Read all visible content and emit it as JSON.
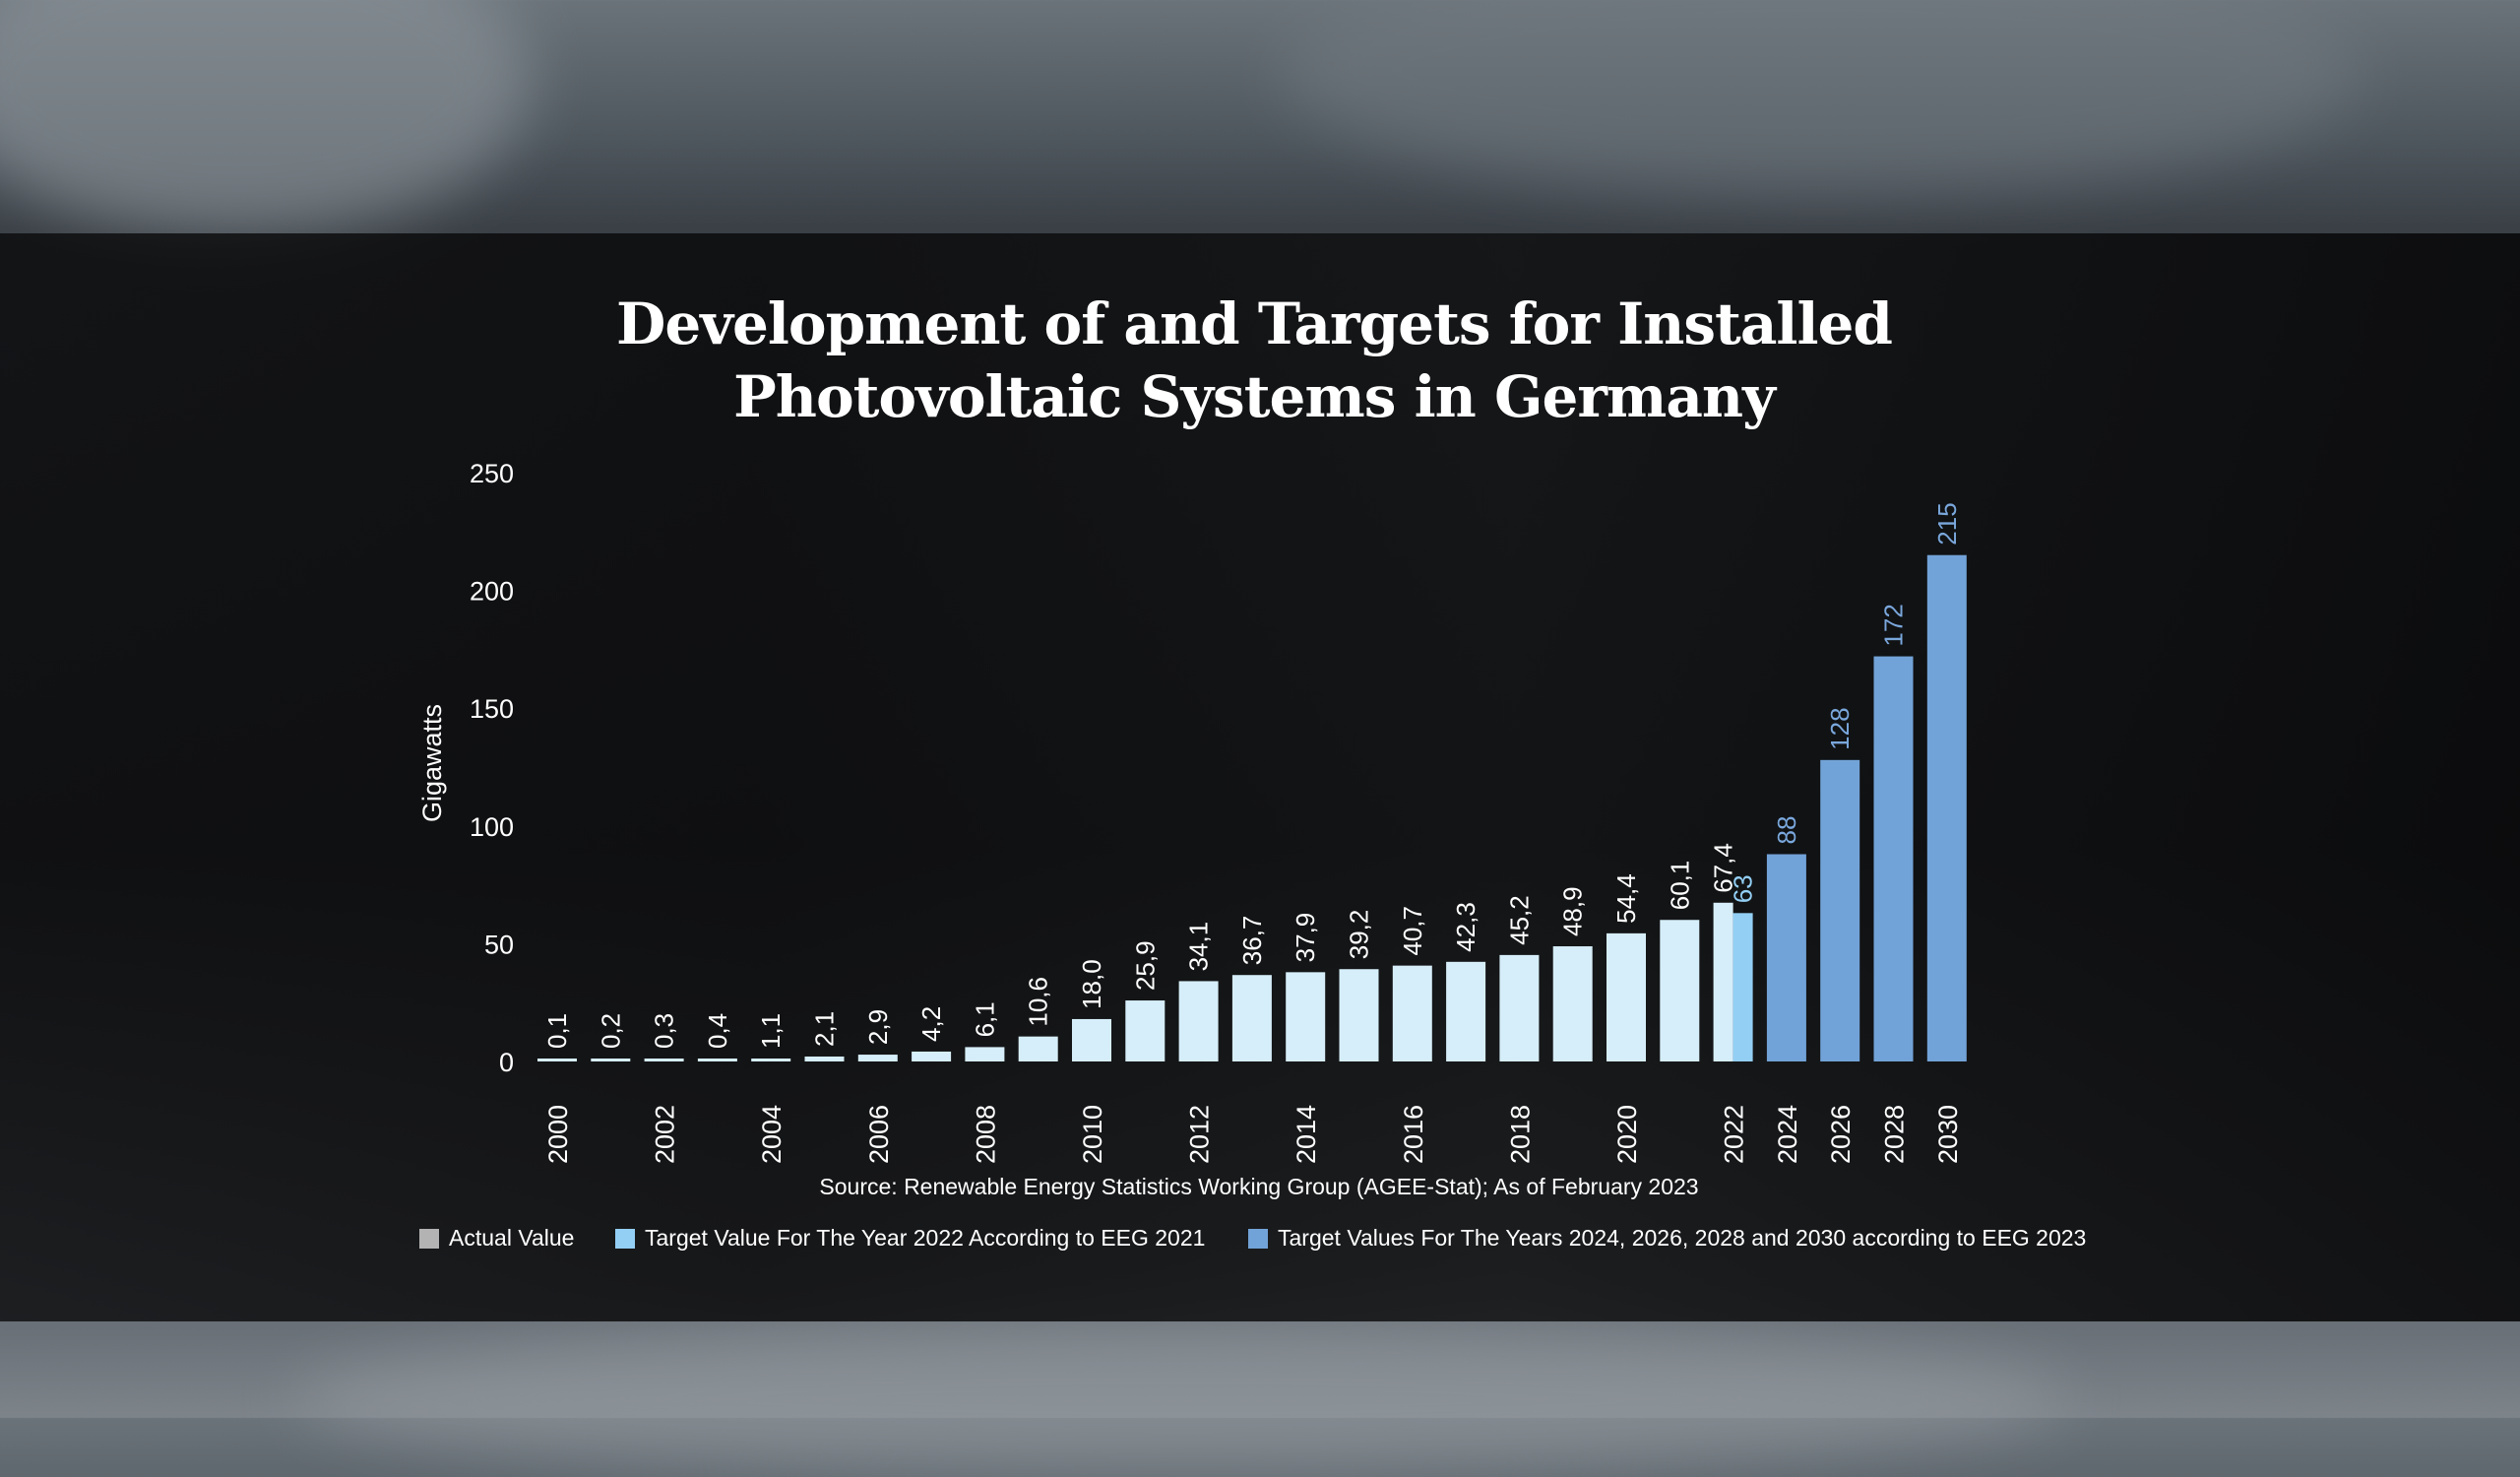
{
  "chart_data": {
    "type": "bar",
    "title_lines": [
      "Development of and Targets for Installed",
      "Photovoltaic Systems in Germany"
    ],
    "ylabel": "Gigawatts",
    "ylim": [
      0,
      250
    ],
    "yticks": [
      0,
      50,
      100,
      150,
      200,
      250
    ],
    "series": [
      {
        "name": "Actual Value",
        "color": "#d6eef9",
        "label_color": "#ffffff",
        "categories": [
          "2000",
          "2001",
          "2002",
          "2003",
          "2004",
          "2005",
          "2006",
          "2007",
          "2008",
          "2009",
          "2010",
          "2011",
          "2012",
          "2013",
          "2014",
          "2015",
          "2016",
          "2017",
          "2018",
          "2019",
          "2020",
          "2021",
          "2022"
        ],
        "values": [
          0.1,
          0.2,
          0.3,
          0.4,
          1.1,
          2.1,
          2.9,
          4.2,
          6.1,
          10.6,
          18.0,
          25.9,
          34.1,
          36.7,
          37.9,
          39.2,
          40.7,
          42.3,
          45.2,
          48.9,
          54.4,
          60.1,
          67.4
        ],
        "labels": [
          "0,1",
          "0,2",
          "0,3",
          "0,4",
          "1,1",
          "2,1",
          "2,9",
          "4,2",
          "6,1",
          "10,6",
          "18,0",
          "25,9",
          "34,1",
          "36,7",
          "37,9",
          "39,2",
          "40,7",
          "42,3",
          "45,2",
          "48,9",
          "54,4",
          "60,1",
          "67,4"
        ]
      },
      {
        "name": "Target Value For The Year 2022 According to EEG 2021",
        "color": "#93cff5",
        "label_color": "#93cff5",
        "categories": [
          "2022"
        ],
        "values": [
          63
        ],
        "labels": [
          "63"
        ]
      },
      {
        "name": "Target Values For The Years 2024, 2026, 2028 and 2030 according to EEG 2023",
        "color": "#72a3d8",
        "label_color": "#7aa7dc",
        "categories": [
          "2024",
          "2026",
          "2028",
          "2030"
        ],
        "values": [
          88,
          128,
          172,
          215
        ],
        "labels": [
          "88",
          "128",
          "172",
          "215"
        ]
      }
    ],
    "x_tick_labels": [
      "2000",
      "2002",
      "2004",
      "2006",
      "2008",
      "2010",
      "2012",
      "2014",
      "2016",
      "2018",
      "2020",
      "2022",
      "2024",
      "2026",
      "2028",
      "2030"
    ],
    "legend_swatch_actual": "#b3b3b3",
    "legend_position": "bottom",
    "grid": false,
    "source": "Source: Renewable Energy Statistics Working Group (AGEE-Stat); As of February 2023"
  }
}
